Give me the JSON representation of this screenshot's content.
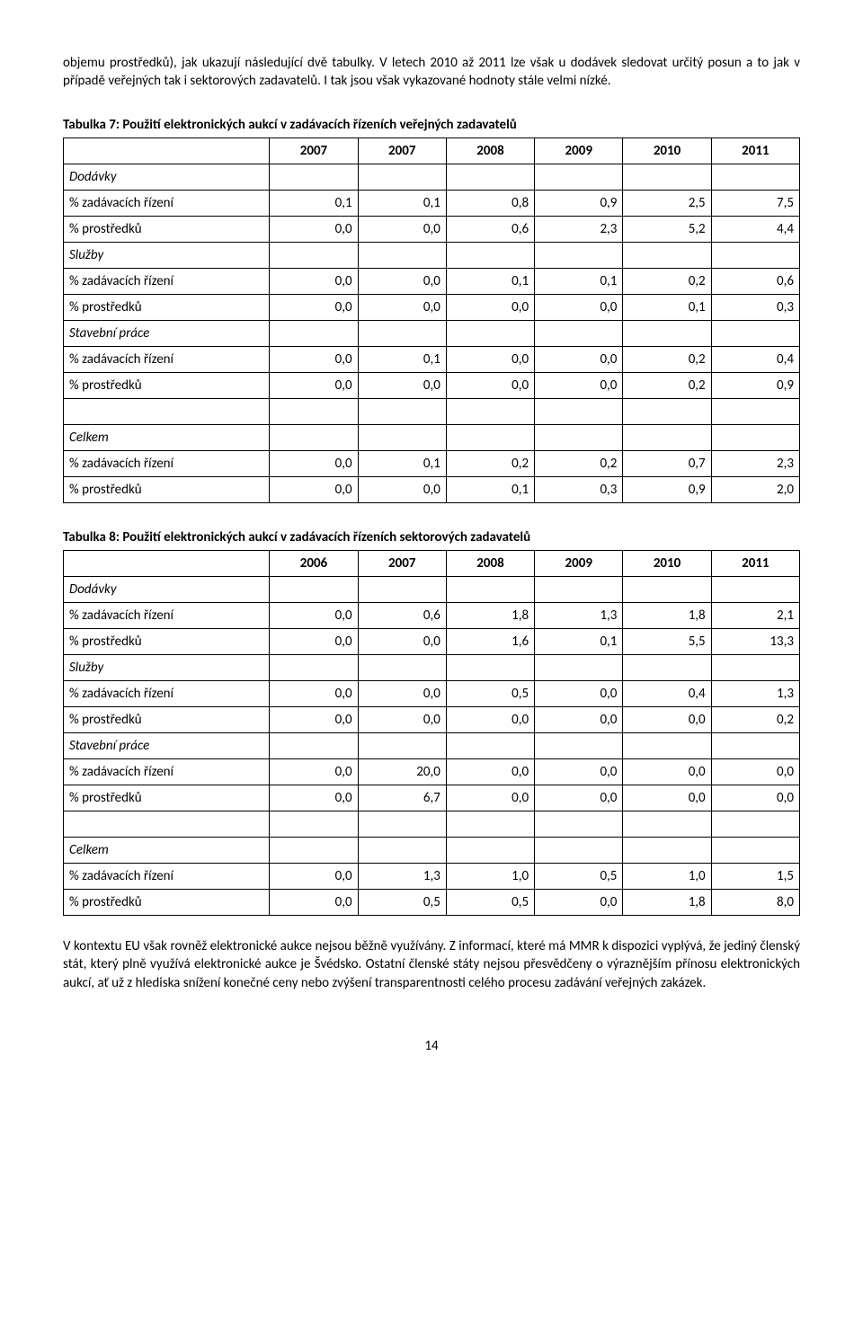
{
  "para1": "objemu prostředků), jak ukazují následující dvě tabulky. V letech 2010 až 2011 lze však u dodávek sledovat určitý posun a to jak v případě veřejných tak i sektorových zadavatelů. I tak jsou však vykazované hodnoty stále velmi nízké.",
  "table7": {
    "title": "Tabulka 7:  Použití elektronických aukcí v zadávacích řízeních veřejných zadavatelů",
    "years": [
      "2007",
      "2007",
      "2008",
      "2009",
      "2010",
      "2011"
    ],
    "groups": [
      {
        "header": "Dodávky",
        "rows": [
          {
            "label": "% zadávacích řízení",
            "vals": [
              "0,1",
              "0,1",
              "0,8",
              "0,9",
              "2,5",
              "7,5"
            ]
          },
          {
            "label": "% prostředků",
            "vals": [
              "0,0",
              "0,0",
              "0,6",
              "2,3",
              "5,2",
              "4,4"
            ]
          }
        ]
      },
      {
        "header": "Služby",
        "rows": [
          {
            "label": "% zadávacích řízení",
            "vals": [
              "0,0",
              "0,0",
              "0,1",
              "0,1",
              "0,2",
              "0,6"
            ]
          },
          {
            "label": "% prostředků",
            "vals": [
              "0,0",
              "0,0",
              "0,0",
              "0,0",
              "0,1",
              "0,3"
            ]
          }
        ]
      },
      {
        "header": "Stavební práce",
        "rows": [
          {
            "label": "% zadávacích řízení",
            "vals": [
              "0,0",
              "0,1",
              "0,0",
              "0,0",
              "0,2",
              "0,4"
            ]
          },
          {
            "label": "% prostředků",
            "vals": [
              "0,0",
              "0,0",
              "0,0",
              "0,0",
              "0,2",
              "0,9"
            ]
          }
        ]
      }
    ],
    "spacer": true,
    "total": {
      "header": "Celkem",
      "rows": [
        {
          "label": "% zadávacích řízení",
          "vals": [
            "0,0",
            "0,1",
            "0,2",
            "0,2",
            "0,7",
            "2,3"
          ]
        },
        {
          "label": "% prostředků",
          "vals": [
            "0,0",
            "0,0",
            "0,1",
            "0,3",
            "0,9",
            "2,0"
          ]
        }
      ]
    }
  },
  "table8": {
    "title": "Tabulka 8:  Použití elektronických aukcí v zadávacích řízeních sektorových zadavatelů",
    "years": [
      "2006",
      "2007",
      "2008",
      "2009",
      "2010",
      "2011"
    ],
    "groups": [
      {
        "header": "Dodávky",
        "rows": [
          {
            "label": "% zadávacích řízení",
            "vals": [
              "0,0",
              "0,6",
              "1,8",
              "1,3",
              "1,8",
              "2,1"
            ]
          },
          {
            "label": "% prostředků",
            "vals": [
              "0,0",
              "0,0",
              "1,6",
              "0,1",
              "5,5",
              "13,3"
            ]
          }
        ]
      },
      {
        "header": "Služby",
        "rows": [
          {
            "label": "% zadávacích řízení",
            "vals": [
              "0,0",
              "0,0",
              "0,5",
              "0,0",
              "0,4",
              "1,3"
            ]
          },
          {
            "label": "% prostředků",
            "vals": [
              "0,0",
              "0,0",
              "0,0",
              "0,0",
              "0,0",
              "0,2"
            ]
          }
        ]
      },
      {
        "header": "Stavební práce",
        "rows": [
          {
            "label": "% zadávacích řízení",
            "vals": [
              "0,0",
              "20,0",
              "0,0",
              "0,0",
              "0,0",
              "0,0"
            ]
          },
          {
            "label": "% prostředků",
            "vals": [
              "0,0",
              "6,7",
              "0,0",
              "0,0",
              "0,0",
              "0,0"
            ]
          }
        ]
      }
    ],
    "spacer": true,
    "total": {
      "header": "Celkem",
      "rows": [
        {
          "label": "% zadávacích řízení",
          "vals": [
            "0,0",
            "1,3",
            "1,0",
            "0,5",
            "1,0",
            "1,5"
          ]
        },
        {
          "label": "% prostředků",
          "vals": [
            "0,0",
            "0,5",
            "0,5",
            "0,0",
            "1,8",
            "8,0"
          ]
        }
      ]
    }
  },
  "para2": "V kontextu EU však rovněž elektronické aukce nejsou běžně využívány. Z informací, které má MMR k dispozici vyplývá, že jediný členský stát, který plně využívá elektronické aukce je Švédsko. Ostatní členské státy nejsou přesvědčeny o výraznějším přínosu elektronických aukcí, ať už z hlediska snížení konečné ceny nebo zvýšení transparentnosti celého procesu zadávání veřejných zakázek.",
  "page_number": "14"
}
